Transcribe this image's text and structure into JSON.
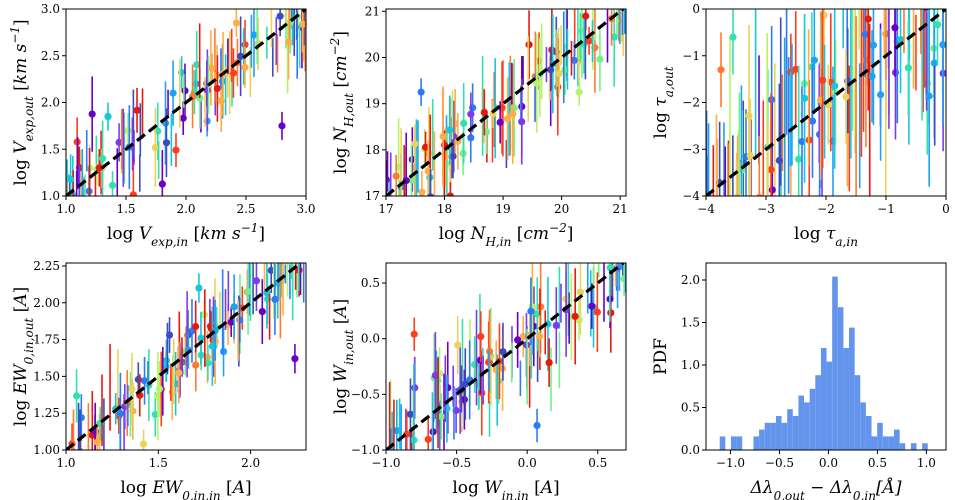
{
  "chart_data": [
    {
      "type": "scatter",
      "title": "",
      "xlabel": "log V_exp,in [km s^-1]",
      "ylabel": "log V_exp,out [km s^-1]",
      "xlim": [
        1.0,
        3.0
      ],
      "ylim": [
        1.0,
        3.0
      ],
      "xticks": [
        "1.0",
        "1.5",
        "2.0",
        "2.5",
        "3.0"
      ],
      "yticks": [
        "1.0",
        "1.5",
        "2.0",
        "2.5",
        "3.0"
      ],
      "reference_line": "y = x (black dashed)",
      "n_points": 130,
      "scatter_sd": 0.2,
      "errorbar_halfwidth": [
        0.15,
        0.45
      ],
      "outliers": [
        {
          "x": 2.8,
          "y": 1.75
        },
        {
          "x": 1.35,
          "y": 1.85
        },
        {
          "x": 2.42,
          "y": 2.85
        }
      ]
    },
    {
      "type": "scatter",
      "title": "",
      "xlabel": "log N_H,in [cm^-2]",
      "ylabel": "log N_H,out [cm^-2]",
      "xlim": [
        17.0,
        21.1
      ],
      "ylim": [
        17.0,
        21.05
      ],
      "xticks": [
        "17",
        "18",
        "19",
        "20",
        "21"
      ],
      "yticks": [
        "17",
        "18",
        "19",
        "20",
        "21"
      ],
      "reference_line": "y = x (black dashed)",
      "n_points": 130,
      "scatter_sd": 0.35,
      "errorbar_halfwidth": [
        0.3,
        1.1
      ],
      "outliers": [
        {
          "x": 17.6,
          "y": 19.25
        },
        {
          "x": 20.3,
          "y": 19.25
        },
        {
          "x": 18.1,
          "y": 17.0
        }
      ]
    },
    {
      "type": "scatter",
      "title": "",
      "xlabel": "log τ_a,in",
      "ylabel": "log τ_a,out",
      "xlim": [
        -4.0,
        0.0
      ],
      "ylim": [
        -4.0,
        0.0
      ],
      "xticks": [
        "−4",
        "−3",
        "−2",
        "−1",
        "0"
      ],
      "yticks": [
        "−4",
        "−3",
        "−2",
        "−1",
        "0"
      ],
      "reference_line": "y = x (black dashed)",
      "n_points": 130,
      "scatter_sd": 0.9,
      "errorbar_halfwidth": [
        0.8,
        2.0
      ],
      "outliers": [
        {
          "x": -3.55,
          "y": -0.6
        },
        {
          "x": -3.75,
          "y": -1.3
        }
      ]
    },
    {
      "type": "scatter",
      "title": "",
      "xlabel": "log EW_0,in,in [A]",
      "ylabel": "log EW_0,in,out [A]",
      "xlim": [
        1.0,
        2.3
      ],
      "ylim": [
        1.0,
        2.27
      ],
      "xticks": [
        "1.0",
        "1.5",
        "2.0"
      ],
      "yticks": [
        "1.00",
        "1.25",
        "1.50",
        "1.75",
        "2.00",
        "2.25"
      ],
      "reference_line": "y = x (black dashed)",
      "n_points": 130,
      "scatter_sd": 0.12,
      "errorbar_halfwidth": [
        0.1,
        0.3
      ],
      "outliers": [
        {
          "x": 1.42,
          "y": 1.04
        },
        {
          "x": 2.24,
          "y": 1.62
        },
        {
          "x": 1.72,
          "y": 2.1
        }
      ]
    },
    {
      "type": "scatter",
      "title": "",
      "xlabel": "log W_in,in [A]",
      "ylabel": "log W_in,out [A]",
      "xlim": [
        -1.0,
        0.7
      ],
      "ylim": [
        -1.0,
        0.68
      ],
      "xticks": [
        "−1.0",
        "−0.5",
        "0.0",
        "0.5"
      ],
      "yticks": [
        "−1.0",
        "−0.5",
        "0.0",
        "0.5"
      ],
      "reference_line": "y = x (black dashed)",
      "n_points": 130,
      "scatter_sd": 0.16,
      "errorbar_halfwidth": [
        0.15,
        0.45
      ],
      "outliers": [
        {
          "x": -0.8,
          "y": 0.04
        },
        {
          "x": 0.07,
          "y": -0.78
        }
      ]
    },
    {
      "type": "bar",
      "title": "",
      "xlabel": "Δλ_0,out − Δλ_0,in [Å]",
      "ylabel": "PDF",
      "xlim": [
        -1.25,
        1.2
      ],
      "ylim": [
        0.0,
        2.2
      ],
      "xticks": [
        "−1.0",
        "−0.5",
        "0.0",
        "0.5",
        "1.0"
      ],
      "yticks": [
        "0.0",
        "0.5",
        "1.0",
        "1.5",
        "2.0"
      ],
      "bin_start": -1.11,
      "bin_width": 0.0574,
      "values": [
        0.16,
        0,
        0.16,
        0.16,
        0,
        0,
        0.16,
        0.24,
        0.32,
        0.32,
        0.4,
        0.32,
        0.48,
        0.4,
        0.64,
        0.56,
        0.72,
        0.88,
        1.2,
        1.04,
        2.04,
        1.68,
        1.2,
        1.44,
        0.88,
        0.56,
        0.4,
        0.16,
        0.32,
        0.16,
        0.16,
        0.24,
        0.08,
        0,
        0.08,
        0,
        0.08
      ],
      "color": "#6495ED"
    }
  ]
}
